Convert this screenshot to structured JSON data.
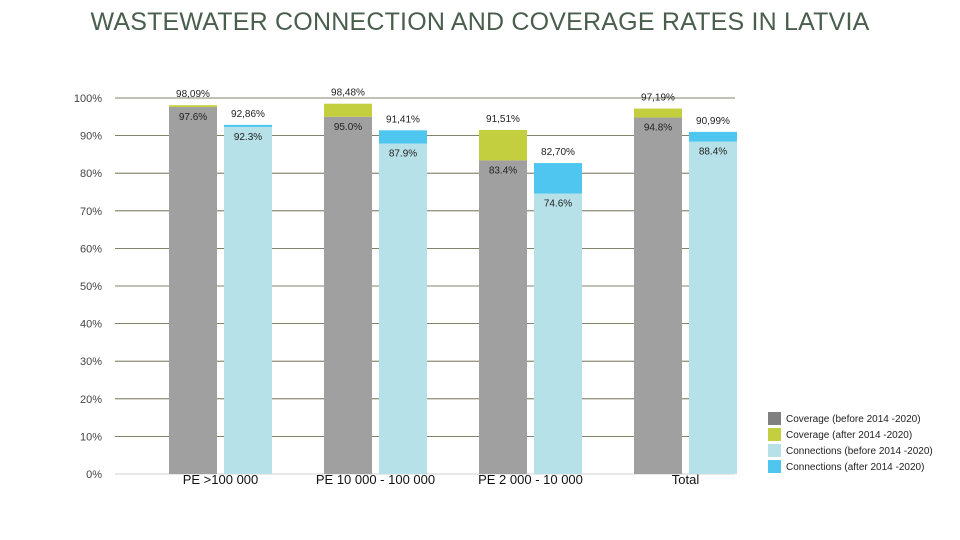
{
  "title": "WASTEWATER CONNECTION AND COVERAGE RATES IN LATVIA",
  "chart_data": {
    "type": "bar",
    "title": "WASTEWATER CONNECTION AND COVERAGE RATES IN LATVIA",
    "categories": [
      "PE >100 000",
      "PE 10 000 - 100 000",
      "PE 2 000 - 10 000",
      "Total"
    ],
    "ylim": [
      0,
      100
    ],
    "yticks": [
      "0%",
      "10%",
      "20%",
      "30%",
      "40%",
      "50%",
      "60%",
      "70%",
      "80%",
      "90%",
      "100%"
    ],
    "grid": true,
    "legend_position": "bottom-right",
    "coverage": {
      "before": [
        97.6,
        95.0,
        83.4,
        94.8
      ],
      "before_labels": [
        "97.6%",
        "95.0%",
        "83.4%",
        "94.8%"
      ],
      "after": [
        98.09,
        98.48,
        91.51,
        97.19
      ],
      "after_labels": [
        "98,09%",
        "98,48%",
        "91,51%",
        "97,19%"
      ]
    },
    "connections": {
      "before": [
        92.3,
        87.9,
        74.6,
        88.4
      ],
      "before_labels": [
        "92.3%",
        "87.9%",
        "74.6%",
        "88.4%"
      ],
      "after": [
        92.86,
        91.41,
        82.7,
        90.99
      ],
      "after_labels": [
        "92,86%",
        "91,41%",
        "82,70%",
        "90,99%"
      ]
    },
    "series": [
      {
        "name": "Coverage (before 2014 -2020)",
        "color": "#a0a0a0",
        "legend_color": "#808080"
      },
      {
        "name": "Coverage (after 2014 -2020)",
        "color": "#c4cf3f",
        "legend_color": "#c4cf3f"
      },
      {
        "name": "Connections (before 2014 -2020)",
        "color": "#b7e1e8",
        "legend_color": "#b7e1e8"
      },
      {
        "name": "Connections (after 2014 -2020)",
        "color": "#4fc6ef",
        "legend_color": "#4fc6ef"
      }
    ]
  }
}
